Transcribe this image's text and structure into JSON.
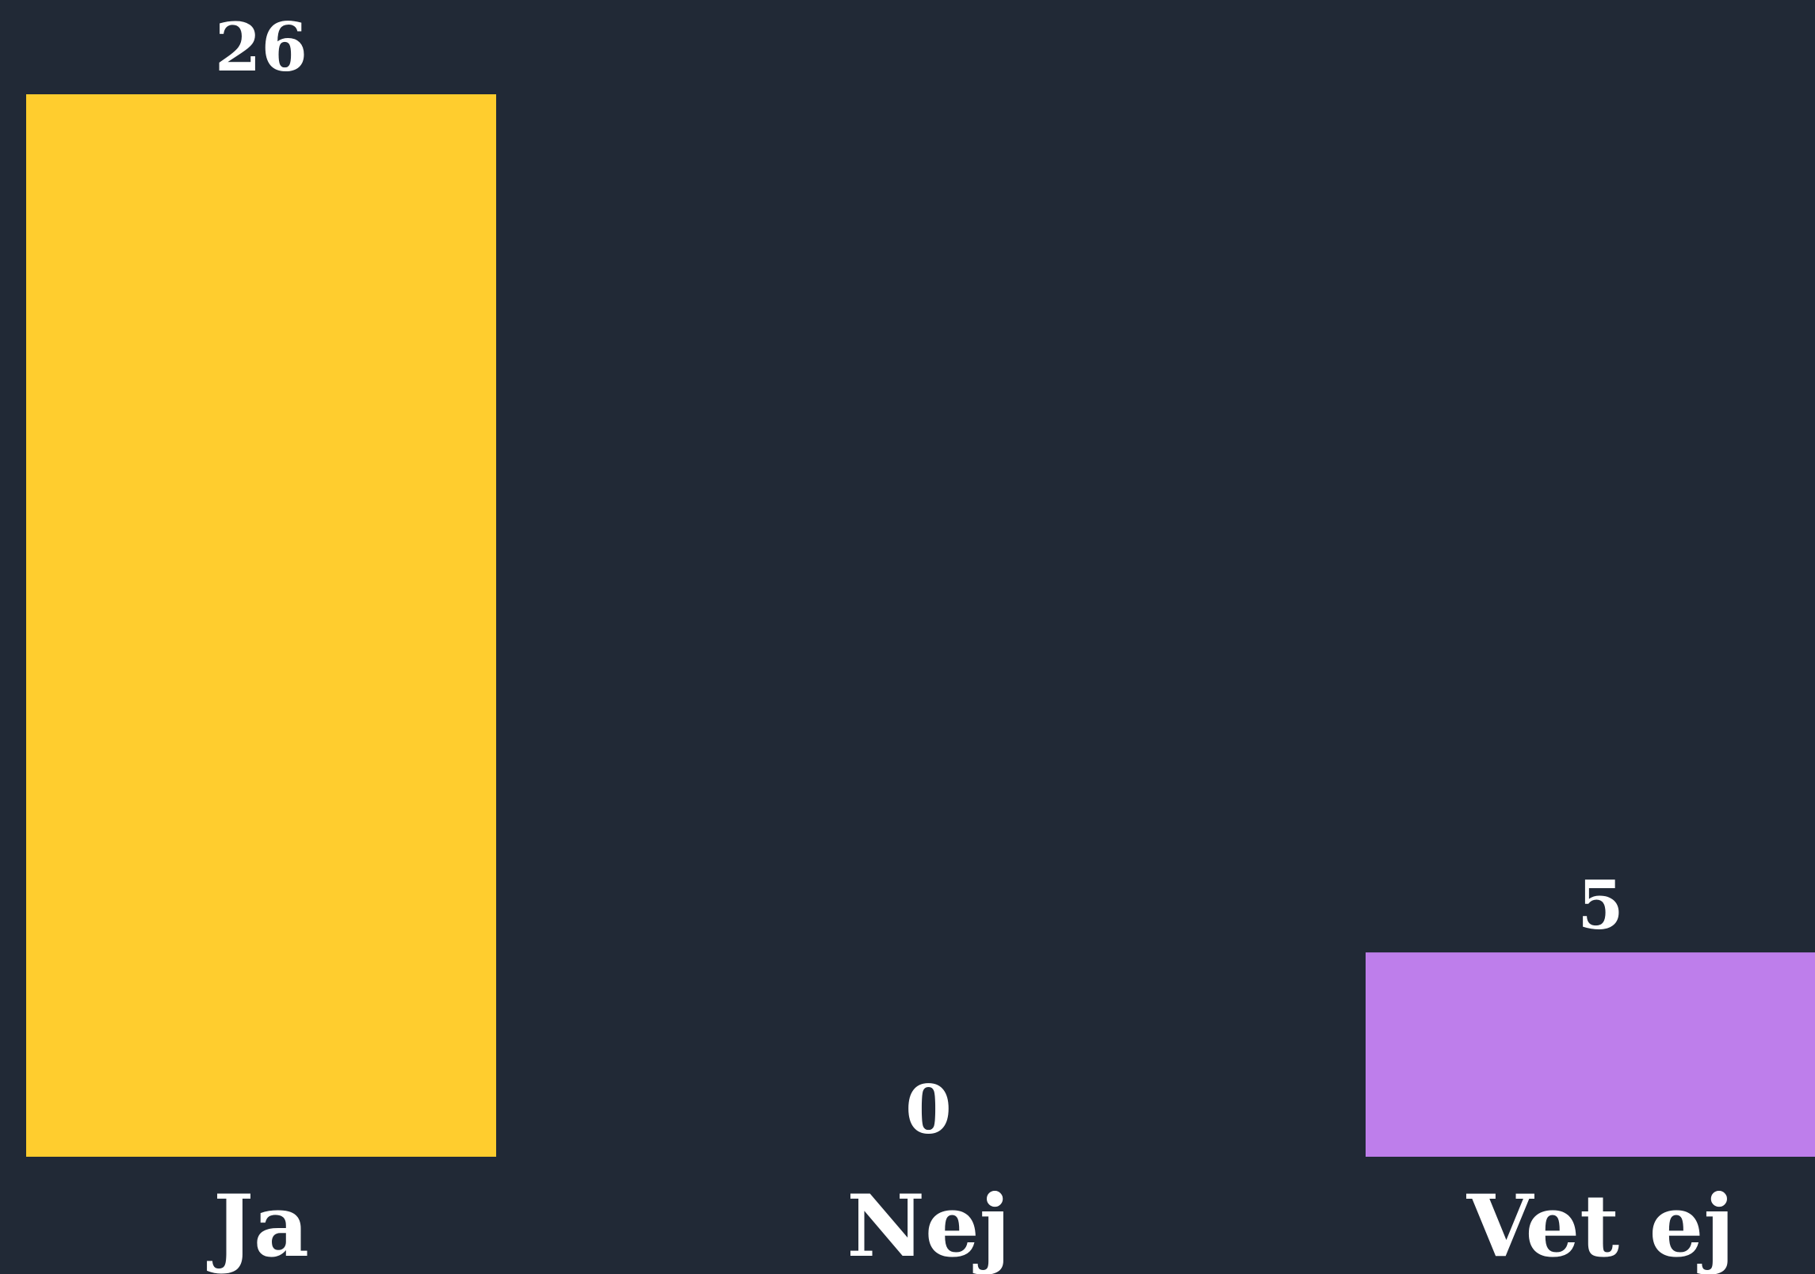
{
  "chart_data": {
    "type": "bar",
    "title": "",
    "xlabel": "",
    "ylabel": "",
    "categories": [
      "Ja",
      "Nej",
      "Vet ej"
    ],
    "values": [
      26,
      0,
      5
    ],
    "colors": [
      "#FFCD2E",
      "#7B6CF6",
      "#BE7EEB"
    ],
    "value_labels": [
      "26",
      "0",
      "5"
    ],
    "ylim": [
      0,
      26
    ],
    "grid": false,
    "legend": "none"
  },
  "background_color": "#212936",
  "text_color": "#FFFFFF"
}
